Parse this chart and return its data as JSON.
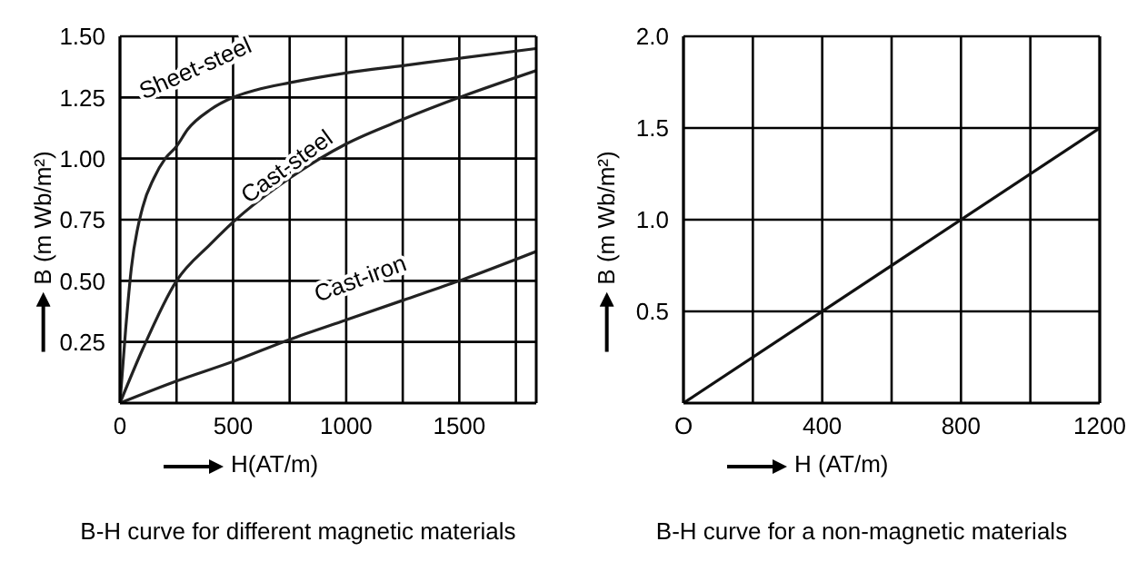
{
  "chart_data": [
    {
      "type": "line",
      "title": "B-H curve for different magnetic materials",
      "xlabel": "H(AT/m)",
      "ylabel": "B (m Wb/m²)",
      "series": [
        {
          "name": "Sheet-steel",
          "color": "#222222",
          "x": [
            0,
            25,
            50,
            100,
            150,
            200,
            250,
            300,
            400,
            500,
            600,
            750,
            1000,
            1250,
            1500,
            1840
          ],
          "values": [
            0,
            0.3,
            0.55,
            0.8,
            0.92,
            1.0,
            1.05,
            1.12,
            1.2,
            1.25,
            1.28,
            1.31,
            1.35,
            1.38,
            1.41,
            1.45
          ]
        },
        {
          "name": "Cast-steel",
          "color": "#222222",
          "x": [
            0,
            100,
            250,
            400,
            500,
            750,
            1000,
            1250,
            1500,
            1840
          ],
          "values": [
            0,
            0.22,
            0.5,
            0.65,
            0.74,
            0.92,
            1.06,
            1.16,
            1.25,
            1.36
          ]
        },
        {
          "name": "Cast-iron",
          "color": "#222222",
          "x": [
            0,
            250,
            500,
            750,
            1000,
            1250,
            1500,
            1840
          ],
          "values": [
            0,
            0.09,
            0.17,
            0.26,
            0.34,
            0.42,
            0.5,
            0.62
          ]
        }
      ],
      "xlim": [
        0,
        1840
      ],
      "xticks": [
        0,
        {
          "value": 250,
          "label": null
        },
        500,
        {
          "value": 750,
          "label": null
        },
        1000,
        {
          "value": 1250,
          "label": null
        },
        1500,
        {
          "value": 1750,
          "label": null
        }
      ],
      "ylim": [
        0,
        1.5
      ],
      "yticks": [
        0.25,
        {
          "value": 0.5,
          "label": "0.50"
        },
        0.75,
        {
          "value": 1.0,
          "label": "1.00"
        },
        1.25,
        {
          "value": 1.5,
          "label": "1.50"
        }
      ],
      "grid": true,
      "marker": "none",
      "line_style": "solid"
    },
    {
      "type": "line",
      "title": "B-H curve for a non-magnetic materials",
      "xlabel": "H (AT/m)",
      "ylabel": "B (m Wb/m²)",
      "series": [
        {
          "color": "#111111",
          "x": [
            0,
            1200
          ],
          "values": [
            0,
            1.5
          ]
        }
      ],
      "xlim": [
        0,
        1200
      ],
      "xticks": [
        {
          "value": 0,
          "label": "O"
        },
        {
          "value": 200,
          "label": null
        },
        400,
        {
          "value": 600,
          "label": null
        },
        800,
        {
          "value": 1000,
          "label": null
        },
        1200
      ],
      "ylim": [
        0,
        2.0
      ],
      "yticks": [
        {
          "value": 0.5,
          "label": "0.5"
        },
        {
          "value": 1.0,
          "label": "1.0"
        },
        {
          "value": 1.5,
          "label": "1.5"
        },
        {
          "value": 2.0,
          "label": "2.0"
        }
      ],
      "grid": true,
      "marker": "none",
      "line_style": "solid"
    }
  ]
}
